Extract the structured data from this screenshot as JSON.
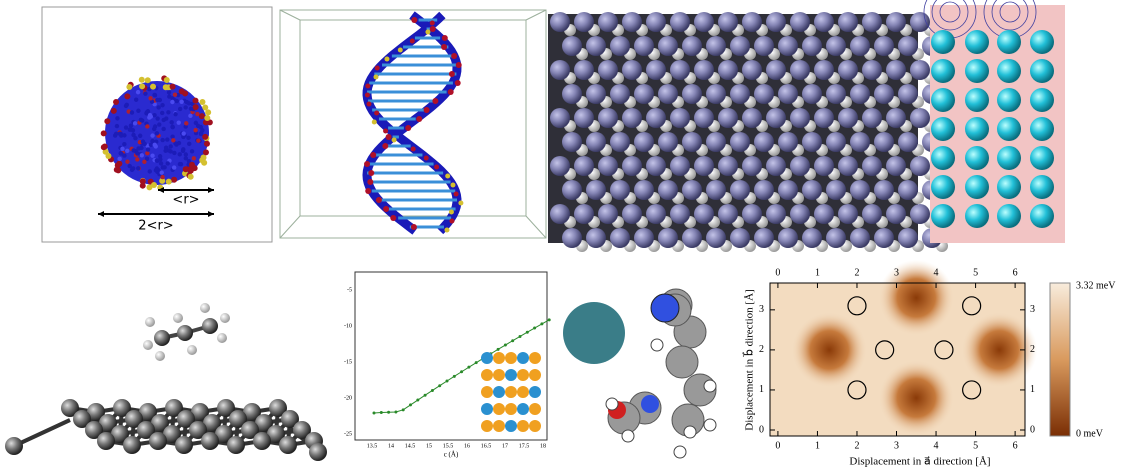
{
  "panel_labels": {
    "radius": "<r>",
    "diameter": "2<r>"
  },
  "energy_plot": {
    "x_label": "c (Å)",
    "xticks": [
      "13.5",
      "14",
      "14.5",
      "15",
      "15.5",
      "16",
      "16.5",
      "17",
      "17.5",
      "18"
    ],
    "yticks": [
      "-5",
      "-10",
      "-15",
      "-20",
      "-25"
    ]
  },
  "heatmap": {
    "x_label": "Displacement in a⃗ direction [Å]",
    "y_label": "Displacement in b⃗ direction [Å]",
    "xlim": [
      -0.2,
      6.25
    ],
    "ylim": [
      -0.15,
      3.67
    ],
    "xticks": [
      0,
      1,
      2,
      3,
      4,
      5,
      6
    ],
    "yticks": [
      0,
      1,
      2,
      3
    ],
    "colorbar": {
      "max_label": "3.32 meV",
      "min_label": "0 meV"
    }
  }
}
